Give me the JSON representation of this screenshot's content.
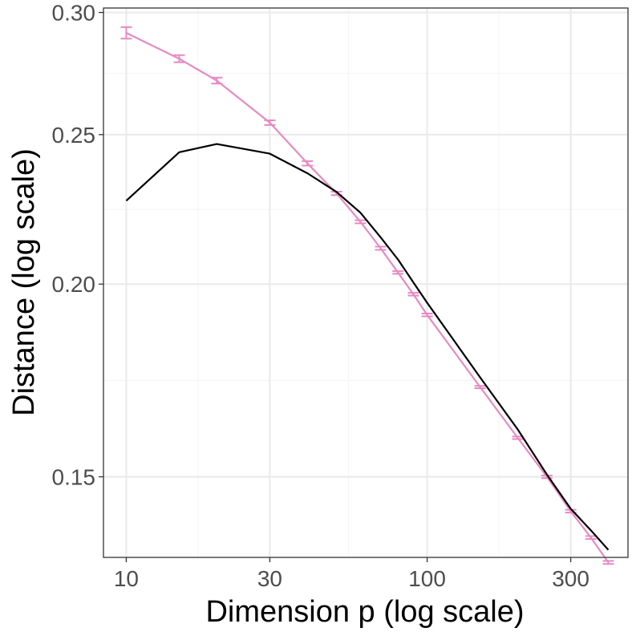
{
  "chart_data": {
    "type": "line",
    "title": "",
    "xlabel": "Dimension p (log scale)",
    "ylabel": "Distance (log scale)",
    "x_scale": "log",
    "y_scale": "log",
    "xlim": [
      8.4,
      465
    ],
    "ylim": [
      0.133,
      0.302
    ],
    "x_ticks": [
      {
        "value": 10,
        "label": "10"
      },
      {
        "value": 30,
        "label": "30"
      },
      {
        "value": 100,
        "label": "100"
      },
      {
        "value": 300,
        "label": "300"
      }
    ],
    "x_minor_ticks": [
      17.32,
      54.77,
      173.2
    ],
    "y_ticks": [
      {
        "value": 0.15,
        "label": "0.15"
      },
      {
        "value": 0.2,
        "label": "0.20"
      },
      {
        "value": 0.25,
        "label": "0.25"
      },
      {
        "value": 0.3,
        "label": "0.30"
      }
    ],
    "y_minor_ticks": [
      0.1732,
      0.2236,
      0.2739
    ],
    "grid": true,
    "legend": "none",
    "x": [
      10,
      15,
      20,
      30,
      40,
      50,
      60,
      70,
      80,
      90,
      100,
      150,
      200,
      250,
      300,
      350,
      400
    ],
    "series": [
      {
        "color": "#e78ac3",
        "style": "line-with-errorbars",
        "values": [
          0.291,
          0.28,
          0.271,
          0.2545,
          0.2395,
          0.229,
          0.2195,
          0.211,
          0.2035,
          0.197,
          0.191,
          0.1715,
          0.159,
          0.15,
          0.1425,
          0.137,
          0.132
        ],
        "err": [
          0.0025,
          0.0015,
          0.0012,
          0.0009,
          0.0008,
          0.0006,
          0.0005,
          0.0005,
          0.0004,
          0.0004,
          0.0004,
          0.0003,
          0.0003,
          0.0003,
          0.0003,
          0.0003,
          0.0003
        ]
      },
      {
        "color": "#000000",
        "style": "line",
        "values": [
          0.2265,
          0.2435,
          0.2465,
          0.243,
          0.236,
          0.2295,
          0.2225,
          0.2145,
          0.2075,
          0.2005,
          0.1945,
          0.174,
          0.161,
          0.1505,
          0.143,
          0.1385,
          0.1345
        ]
      }
    ],
    "colors": {
      "panel_border": "#333333",
      "grid_major": "#ebebeb",
      "grid_minor": "#f5f5f5",
      "tick_label": "#4d4d4d"
    }
  }
}
